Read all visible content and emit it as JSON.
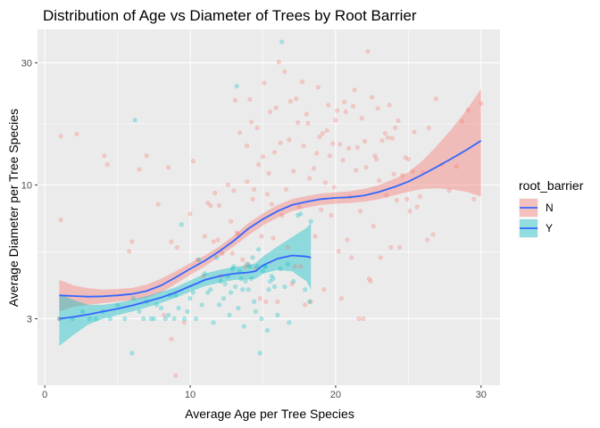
{
  "chart_data": {
    "type": "scatter",
    "title": "Distribution of Age vs Diameter of Trees by Root Barrier",
    "xlabel": "Average Age per Tree Species",
    "ylabel": "Average Diameter per Tree Species",
    "xlim": [
      -0.5,
      31.3
    ],
    "ylim": [
      1.65,
      40.5
    ],
    "y_scale": "log10",
    "x_ticks": [
      0,
      10,
      20,
      30
    ],
    "x_tick_labels": [
      "0",
      "10",
      "20",
      "30"
    ],
    "y_ticks": [
      3,
      10,
      30
    ],
    "y_tick_labels": [
      "3",
      "10",
      "30"
    ],
    "grid": true,
    "legend": {
      "title": "root_barrier",
      "position": "right",
      "entries": [
        "N",
        "Y"
      ]
    },
    "colors": {
      "N": "#F8766D",
      "Y": "#00BFC4",
      "smooth_line": "#3366FF",
      "panel_background": "#EBEBEB",
      "grid": "#FFFFFF"
    },
    "series": [
      {
        "name": "N",
        "points": [
          [
            1.0,
            3.0
          ],
          [
            1.1,
            7.3
          ],
          [
            1.1,
            15.5
          ],
          [
            2.2,
            15.8
          ],
          [
            4.1,
            13.0
          ],
          [
            4.3,
            12.0
          ],
          [
            5.8,
            5.5
          ],
          [
            6.0,
            6.0
          ],
          [
            6.5,
            11.5
          ],
          [
            7.0,
            13.0
          ],
          [
            7.8,
            8.4
          ],
          [
            8.2,
            3.1
          ],
          [
            8.5,
            11.7
          ],
          [
            8.7,
            2.5
          ],
          [
            8.7,
            6.0
          ],
          [
            9.0,
            1.8
          ],
          [
            9.1,
            5.7
          ],
          [
            9.6,
            2.9
          ],
          [
            10.0,
            7.7
          ],
          [
            10.2,
            12.4
          ],
          [
            10.5,
            5.1
          ],
          [
            10.9,
            4.4
          ],
          [
            11.0,
            6.3
          ],
          [
            11.2,
            8.5
          ],
          [
            11.4,
            8.3
          ],
          [
            11.6,
            6.0
          ],
          [
            11.7,
            9.3
          ],
          [
            11.9,
            6.1
          ],
          [
            12.0,
            8.3
          ],
          [
            12.1,
            4.4
          ],
          [
            12.2,
            5.4
          ],
          [
            12.6,
            10.0
          ],
          [
            12.8,
            7.2
          ],
          [
            12.9,
            5.4
          ],
          [
            13.0,
            9.5
          ],
          [
            13.1,
            21.4
          ],
          [
            13.2,
            6.5
          ],
          [
            13.3,
            6.4
          ],
          [
            13.4,
            16.0
          ],
          [
            13.6,
            5.1
          ],
          [
            13.8,
            4.8
          ],
          [
            13.9,
            14.2
          ],
          [
            13.9,
            10.3
          ],
          [
            14.0,
            4.9
          ],
          [
            14.1,
            21.6
          ],
          [
            14.2,
            17.6
          ],
          [
            14.3,
            8.8
          ],
          [
            14.4,
            9.6
          ],
          [
            14.5,
            4.7
          ],
          [
            14.6,
            16.7
          ],
          [
            14.7,
            12.0
          ],
          [
            14.8,
            3.6
          ],
          [
            14.9,
            6.3
          ],
          [
            15.0,
            12.9
          ],
          [
            15.1,
            25.0
          ],
          [
            15.2,
            3.5
          ],
          [
            15.3,
            9.2
          ],
          [
            15.4,
            11.1
          ],
          [
            15.5,
            19.3
          ],
          [
            15.6,
            8.4
          ],
          [
            15.7,
            6.2
          ],
          [
            15.8,
            13.4
          ],
          [
            15.9,
            20.0
          ],
          [
            16.0,
            3.5
          ],
          [
            16.1,
            30.2
          ],
          [
            16.2,
            14.6
          ],
          [
            16.3,
            7.6
          ],
          [
            16.5,
            27.7
          ],
          [
            16.6,
            9.6
          ],
          [
            16.7,
            5.7
          ],
          [
            16.8,
            15.0
          ],
          [
            16.9,
            21.2
          ],
          [
            17.0,
            4.1
          ],
          [
            17.1,
            11.3
          ],
          [
            17.2,
            4.8
          ],
          [
            17.3,
            21.7
          ],
          [
            17.4,
            17.5
          ],
          [
            17.5,
            8.2
          ],
          [
            17.6,
            4.8
          ],
          [
            17.7,
            25.3
          ],
          [
            17.8,
            14.2
          ],
          [
            17.9,
            3.4
          ],
          [
            18.0,
            18.9
          ],
          [
            18.1,
            17.4
          ],
          [
            18.2,
            10.6
          ],
          [
            18.3,
            3.5
          ],
          [
            18.5,
            11.6
          ],
          [
            18.6,
            6.3
          ],
          [
            18.7,
            13.3
          ],
          [
            18.8,
            24.1
          ],
          [
            18.9,
            15.4
          ],
          [
            19.0,
            8.0
          ],
          [
            19.1,
            15.9
          ],
          [
            19.2,
            3.9
          ],
          [
            19.3,
            10.2
          ],
          [
            19.4,
            16.3
          ],
          [
            19.5,
            20.5
          ],
          [
            19.6,
            13.0
          ],
          [
            19.7,
            7.6
          ],
          [
            19.8,
            14.5
          ],
          [
            19.9,
            9.8
          ],
          [
            20.0,
            17.9
          ],
          [
            20.1,
            19.5
          ],
          [
            20.2,
            5.5
          ],
          [
            20.3,
            14.4
          ],
          [
            20.4,
            3.6
          ],
          [
            20.5,
            12.5
          ],
          [
            20.6,
            21.1
          ],
          [
            20.7,
            19.3
          ],
          [
            20.8,
            6.1
          ],
          [
            20.9,
            13.9
          ],
          [
            21.0,
            9.0
          ],
          [
            21.1,
            5.2
          ],
          [
            21.2,
            20.3
          ],
          [
            21.3,
            23.5
          ],
          [
            21.4,
            11.4
          ],
          [
            21.5,
            14.0
          ],
          [
            21.6,
            3.0
          ],
          [
            21.7,
            7.9
          ],
          [
            21.8,
            18.2
          ],
          [
            21.9,
            3.0
          ],
          [
            22.0,
            14.8
          ],
          [
            22.1,
            11.7
          ],
          [
            22.2,
            33.2
          ],
          [
            22.3,
            4.3
          ],
          [
            22.4,
            4.2
          ],
          [
            22.5,
            22.0
          ],
          [
            22.6,
            6.9
          ],
          [
            22.7,
            13.0
          ],
          [
            22.8,
            12.6
          ],
          [
            22.9,
            19.9
          ],
          [
            23.0,
            10.4
          ],
          [
            23.1,
            5.2
          ],
          [
            23.2,
            14.9
          ],
          [
            23.4,
            15.9
          ],
          [
            23.5,
            9.1
          ],
          [
            23.6,
            15.3
          ],
          [
            23.7,
            20.5
          ],
          [
            23.8,
            5.7
          ],
          [
            23.9,
            15.2
          ],
          [
            24.0,
            11.0
          ],
          [
            24.1,
            16.7
          ],
          [
            24.2,
            8.7
          ],
          [
            24.3,
            17.8
          ],
          [
            24.4,
            5.7
          ],
          [
            24.6,
            10.9
          ],
          [
            24.8,
            12.8
          ],
          [
            24.9,
            8.8
          ],
          [
            25.0,
            12.6
          ],
          [
            25.1,
            7.9
          ],
          [
            25.3,
            11.3
          ],
          [
            25.4,
            16.1
          ],
          [
            25.6,
            8.2
          ],
          [
            25.8,
            9.0
          ],
          [
            26.0,
            11.2
          ],
          [
            26.3,
            6.1
          ],
          [
            26.4,
            16.7
          ],
          [
            26.7,
            6.4
          ],
          [
            26.9,
            21.7
          ],
          [
            27.3,
            12.0
          ],
          [
            27.8,
            9.5
          ],
          [
            28.3,
            11.8
          ],
          [
            28.7,
            17.7
          ],
          [
            29.1,
            19.6
          ],
          [
            29.5,
            8.8
          ],
          [
            30.0,
            20.8
          ]
        ]
      },
      {
        "name": "Y",
        "points": [
          [
            1.0,
            3.0
          ],
          [
            1.9,
            3.0
          ],
          [
            2.6,
            3.2
          ],
          [
            3.1,
            3.0
          ],
          [
            3.5,
            3.0
          ],
          [
            4.0,
            3.2
          ],
          [
            4.5,
            3.0
          ],
          [
            5.0,
            3.4
          ],
          [
            5.5,
            3.0
          ],
          [
            6.0,
            2.2
          ],
          [
            6.1,
            3.6
          ],
          [
            6.2,
            17.9
          ],
          [
            6.5,
            3.2
          ],
          [
            6.8,
            3.0
          ],
          [
            7.0,
            3.5
          ],
          [
            7.3,
            3.0
          ],
          [
            7.5,
            3.0
          ],
          [
            7.7,
            3.4
          ],
          [
            8.0,
            3.3
          ],
          [
            8.3,
            3.0
          ],
          [
            8.5,
            3.1
          ],
          [
            8.6,
            3.7
          ],
          [
            8.9,
            3.0
          ],
          [
            9.0,
            3.7
          ],
          [
            9.2,
            3.3
          ],
          [
            9.4,
            7.0
          ],
          [
            9.6,
            3.0
          ],
          [
            9.8,
            3.2
          ],
          [
            10.0,
            3.6
          ],
          [
            10.2,
            3.8
          ],
          [
            10.4,
            3.0
          ],
          [
            10.6,
            5.1
          ],
          [
            10.8,
            3.4
          ],
          [
            11.0,
            4.5
          ],
          [
            11.2,
            3.8
          ],
          [
            11.4,
            3.9
          ],
          [
            11.6,
            2.9
          ],
          [
            11.8,
            5.2
          ],
          [
            12.0,
            3.4
          ],
          [
            12.1,
            4.2
          ],
          [
            12.3,
            3.6
          ],
          [
            12.4,
            4.1
          ],
          [
            12.6,
            4.4
          ],
          [
            12.7,
            3.1
          ],
          [
            12.8,
            3.8
          ],
          [
            12.9,
            4.7
          ],
          [
            13.0,
            4.8
          ],
          [
            13.1,
            4.0
          ],
          [
            13.2,
            24.3
          ],
          [
            13.3,
            3.3
          ],
          [
            13.4,
            4.6
          ],
          [
            13.5,
            4.3
          ],
          [
            13.6,
            3.9
          ],
          [
            13.7,
            2.8
          ],
          [
            13.8,
            4.2
          ],
          [
            13.9,
            4.9
          ],
          [
            14.0,
            3.9
          ],
          [
            14.1,
            4.8
          ],
          [
            14.2,
            4.3
          ],
          [
            14.3,
            5.2
          ],
          [
            14.4,
            3.5
          ],
          [
            14.5,
            3.2
          ],
          [
            14.6,
            4.8
          ],
          [
            14.7,
            5.6
          ],
          [
            14.8,
            2.2
          ],
          [
            14.9,
            3.0
          ],
          [
            15.0,
            4.6
          ],
          [
            15.1,
            4.8
          ],
          [
            15.2,
            4.8
          ],
          [
            15.3,
            2.7
          ],
          [
            15.4,
            3.9
          ],
          [
            15.5,
            4.2
          ],
          [
            15.6,
            4.4
          ],
          [
            15.7,
            4.3
          ],
          [
            15.8,
            4.0
          ],
          [
            16.0,
            3.1
          ],
          [
            16.2,
            4.7
          ],
          [
            16.3,
            36.2
          ],
          [
            16.5,
            4.0
          ],
          [
            16.7,
            4.9
          ],
          [
            16.8,
            2.9
          ],
          [
            17.1,
            4.2
          ],
          [
            17.4,
            7.6
          ],
          [
            17.6,
            7.7
          ],
          [
            17.9,
            3.9
          ],
          [
            18.2,
            3.5
          ],
          [
            18.3,
            7.2
          ]
        ]
      }
    ],
    "smooth": [
      {
        "name": "N",
        "x": [
          1,
          2,
          3,
          4,
          5,
          6,
          7,
          8,
          9,
          10,
          11,
          12,
          13,
          14,
          15,
          16,
          17,
          18,
          19,
          20,
          21,
          22,
          23,
          24,
          25,
          26,
          27,
          28,
          29,
          30
        ],
        "y": [
          3.7,
          3.68,
          3.66,
          3.67,
          3.7,
          3.75,
          3.85,
          4.05,
          4.35,
          4.7,
          5.05,
          5.5,
          6.05,
          6.75,
          7.35,
          7.9,
          8.35,
          8.6,
          8.8,
          8.9,
          8.95,
          9.1,
          9.4,
          9.8,
          10.3,
          11.0,
          11.8,
          12.7,
          13.7,
          14.9
        ],
        "lower": [
          3.2,
          3.35,
          3.4,
          3.45,
          3.5,
          3.55,
          3.62,
          3.8,
          4.1,
          4.45,
          4.8,
          5.25,
          5.75,
          6.35,
          6.95,
          7.45,
          7.9,
          8.15,
          8.35,
          8.45,
          8.5,
          8.6,
          8.8,
          9.1,
          9.4,
          9.65,
          9.7,
          9.6,
          9.4,
          9.0
        ],
        "upper": [
          4.25,
          4.05,
          3.95,
          3.9,
          3.92,
          3.96,
          4.08,
          4.3,
          4.6,
          4.95,
          5.3,
          5.75,
          6.35,
          7.1,
          7.75,
          8.35,
          8.8,
          9.05,
          9.25,
          9.35,
          9.45,
          9.65,
          10.0,
          10.55,
          11.2,
          12.5,
          14.3,
          16.6,
          19.6,
          23.7
        ]
      },
      {
        "name": "Y",
        "x": [
          1,
          2,
          3,
          4,
          5,
          6,
          7,
          8,
          9,
          10,
          11,
          12,
          13,
          14,
          14.5,
          15,
          16,
          17,
          18,
          18.3
        ],
        "y": [
          3.0,
          3.05,
          3.12,
          3.2,
          3.28,
          3.38,
          3.5,
          3.63,
          3.8,
          4.02,
          4.25,
          4.4,
          4.5,
          4.55,
          4.6,
          4.85,
          5.15,
          5.3,
          5.25,
          5.2
        ],
        "lower": [
          2.35,
          2.6,
          2.85,
          3.0,
          3.1,
          3.2,
          3.32,
          3.46,
          3.62,
          3.82,
          4.02,
          4.15,
          4.25,
          4.28,
          4.3,
          4.5,
          4.65,
          4.6,
          4.2,
          3.9
        ],
        "upper": [
          3.75,
          3.55,
          3.4,
          3.4,
          3.46,
          3.56,
          3.68,
          3.82,
          3.98,
          4.23,
          4.5,
          4.66,
          4.78,
          4.85,
          4.95,
          5.25,
          5.75,
          6.25,
          6.8,
          7.1
        ]
      }
    ]
  }
}
